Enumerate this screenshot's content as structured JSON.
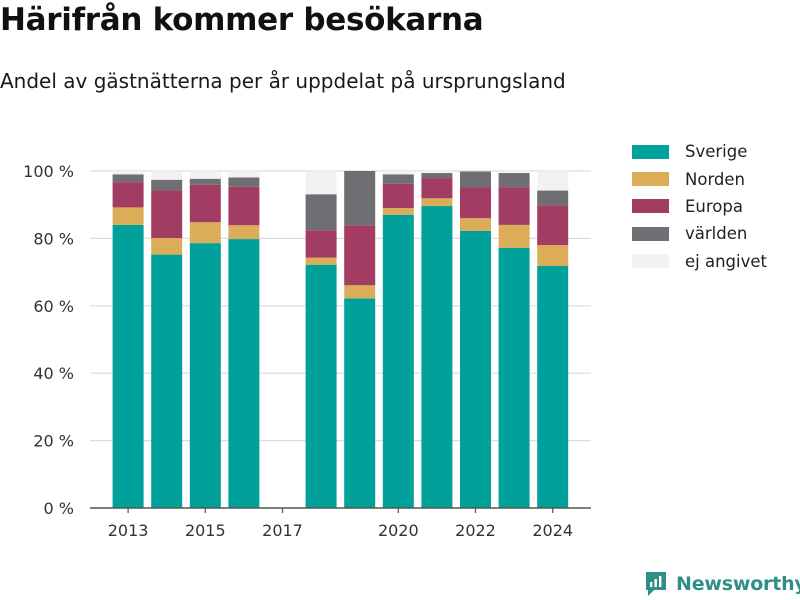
{
  "header": {
    "title": "Härifrån kommer besökarna",
    "subtitle": "Andel av gästnätterna per år uppdelat på ursprungsland"
  },
  "brand": {
    "name": "Newsworthy",
    "color": "#2f8f87"
  },
  "chart_data": {
    "type": "bar",
    "stacked": true,
    "categories": [
      2013,
      2014,
      2015,
      2016,
      2017,
      2018,
      2019,
      2020,
      2021,
      2022,
      2023,
      2024
    ],
    "x_tick_labels": [
      "2013",
      "2015",
      "2017",
      "2020",
      "2022",
      "2024"
    ],
    "x_tick_values": [
      2013,
      2015,
      2017,
      2020,
      2022,
      2024
    ],
    "ylim": [
      0,
      100
    ],
    "y_tick_values": [
      0,
      20,
      40,
      60,
      80,
      100
    ],
    "y_tick_labels": [
      "0 %",
      "20 %",
      "40 %",
      "60 %",
      "80 %",
      "100 %"
    ],
    "grid": true,
    "legend_position": "right",
    "series": [
      {
        "name": "Sverige",
        "color": "#00a19a",
        "values": [
          84,
          75.2,
          78.6,
          79.8,
          null,
          72.2,
          62.2,
          87,
          89.6,
          82.2,
          77.2,
          71.8
        ]
      },
      {
        "name": "Norden",
        "color": "#dcad58",
        "values": [
          5.2,
          4.9,
          6.2,
          4.1,
          null,
          2.1,
          3.9,
          2,
          2.3,
          3.8,
          6.8,
          6.2
        ]
      },
      {
        "name": "Europa",
        "color": "#a33c63",
        "values": [
          7.5,
          14.1,
          11.1,
          11.4,
          null,
          8.1,
          17.8,
          7.2,
          6,
          9.1,
          11.2,
          11.8
        ]
      },
      {
        "name": "världen",
        "color": "#6f6f73",
        "values": [
          2.3,
          3.2,
          1.8,
          2.8,
          null,
          10.7,
          16.1,
          2.8,
          1.5,
          4.8,
          4.2,
          4.4
        ]
      },
      {
        "name": "ej angivet",
        "color": "#f2f2f2",
        "values": [
          1,
          2.6,
          2.3,
          1.9,
          null,
          6.9,
          0,
          1,
          0.6,
          0.1,
          0.6,
          5.8
        ]
      }
    ]
  }
}
